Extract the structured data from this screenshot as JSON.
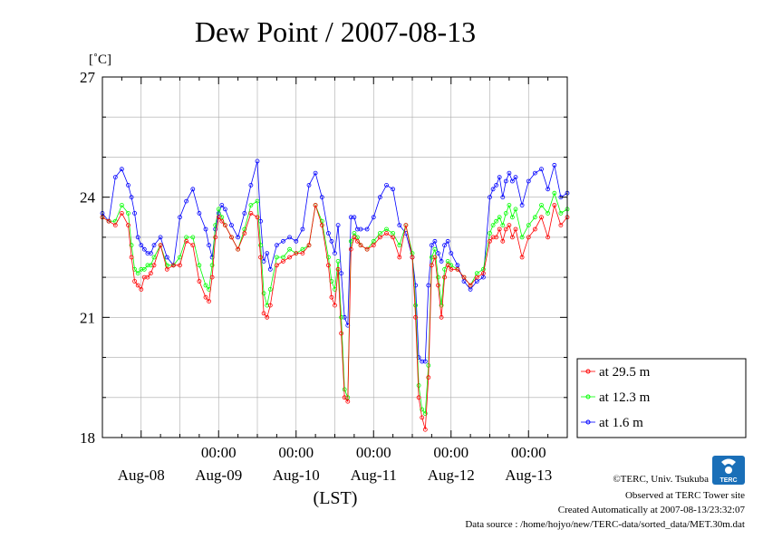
{
  "chart_data": {
    "type": "line",
    "title": "Dew Point / 2007-08-13",
    "ylabel": "[˚C]",
    "xlabel": "(LST)",
    "ylim": [
      18,
      27
    ],
    "xlim": [
      0,
      144
    ],
    "x_unit": "hours since Aug-07 12:00 LST",
    "yticks": [
      18,
      21,
      24,
      27
    ],
    "xticks": [
      {
        "x": 36,
        "label": "00:00",
        "day": "Aug-08"
      },
      {
        "x": 60,
        "label": "00:00",
        "day": "Aug-09"
      },
      {
        "x": 84,
        "label": "00:00",
        "day": "Aug-10"
      },
      {
        "x": 108,
        "label": "00:00",
        "day": "Aug-11"
      },
      {
        "x": 132,
        "label": "00:00",
        "day": "Aug-12"
      }
    ],
    "day_labels": [
      "Aug-08",
      "Aug-09",
      "Aug-10",
      "Aug-11",
      "Aug-12",
      "Aug-13"
    ],
    "grid": true,
    "legend_position": "right",
    "series": [
      {
        "name": "at 29.5 m",
        "color": "#ff0000",
        "x": [
          0,
          2,
          4,
          6,
          8,
          9,
          10,
          11,
          12,
          13,
          14,
          15,
          16,
          18,
          20,
          22,
          24,
          26,
          28,
          30,
          32,
          33,
          34,
          35,
          36,
          37,
          38,
          40,
          42,
          44,
          46,
          48,
          49,
          50,
          51,
          52,
          54,
          56,
          58,
          60,
          62,
          64,
          66,
          68,
          70,
          71,
          72,
          73,
          74,
          75,
          76,
          77,
          78,
          79,
          80,
          82,
          84,
          86,
          88,
          90,
          92,
          94,
          96,
          97,
          98,
          99,
          100,
          101,
          102,
          103,
          104,
          105,
          106,
          107,
          108,
          110,
          112,
          114,
          116,
          118,
          120,
          121,
          122,
          123,
          124,
          125,
          126,
          127,
          128,
          130,
          132,
          134,
          136,
          138,
          140,
          142,
          144
        ],
        "y": [
          23.5,
          23.4,
          23.3,
          23.6,
          23.3,
          22.5,
          21.9,
          21.8,
          21.7,
          22.0,
          22.0,
          22.1,
          22.3,
          22.8,
          22.2,
          22.3,
          22.3,
          22.9,
          22.8,
          21.9,
          21.5,
          21.4,
          22.0,
          23.0,
          23.5,
          23.4,
          23.3,
          23.0,
          22.7,
          23.1,
          23.6,
          23.5,
          22.5,
          21.1,
          21.0,
          21.3,
          22.3,
          22.4,
          22.5,
          22.6,
          22.6,
          22.8,
          23.8,
          23.3,
          22.3,
          21.5,
          21.3,
          22.2,
          20.6,
          19.0,
          18.9,
          22.7,
          23.0,
          22.9,
          22.8,
          22.7,
          22.8,
          23.0,
          23.1,
          23.0,
          22.5,
          23.3,
          22.5,
          21.0,
          19.0,
          18.5,
          18.2,
          19.5,
          22.3,
          22.5,
          21.8,
          21.0,
          22.0,
          22.3,
          22.2,
          22.2,
          22.0,
          21.8,
          22.0,
          22.1,
          22.9,
          23.0,
          23.0,
          23.2,
          22.9,
          23.2,
          23.3,
          23.0,
          23.2,
          22.5,
          23.0,
          23.2,
          23.5,
          23.0,
          23.8,
          23.3,
          23.5
        ]
      },
      {
        "name": "at 12.3 m",
        "color": "#00ff00",
        "x": [
          0,
          2,
          4,
          6,
          8,
          9,
          10,
          11,
          12,
          13,
          14,
          15,
          16,
          18,
          20,
          22,
          24,
          26,
          28,
          30,
          32,
          33,
          34,
          35,
          36,
          37,
          38,
          40,
          42,
          44,
          46,
          48,
          49,
          50,
          51,
          52,
          54,
          56,
          58,
          60,
          62,
          64,
          66,
          68,
          70,
          71,
          72,
          73,
          74,
          75,
          76,
          77,
          78,
          79,
          80,
          82,
          84,
          86,
          88,
          90,
          92,
          94,
          96,
          97,
          98,
          99,
          100,
          101,
          102,
          103,
          104,
          105,
          106,
          107,
          108,
          110,
          112,
          114,
          116,
          118,
          120,
          121,
          122,
          123,
          124,
          125,
          126,
          127,
          128,
          130,
          132,
          134,
          136,
          138,
          140,
          142,
          144
        ],
        "y": [
          23.5,
          23.4,
          23.4,
          23.8,
          23.6,
          22.8,
          22.2,
          22.1,
          22.2,
          22.2,
          22.3,
          22.3,
          22.5,
          22.8,
          22.3,
          22.3,
          22.5,
          23.0,
          23.0,
          22.3,
          21.8,
          21.7,
          22.3,
          23.3,
          23.7,
          23.5,
          23.3,
          23.0,
          22.7,
          23.2,
          23.8,
          23.9,
          22.8,
          21.6,
          21.3,
          21.7,
          22.5,
          22.5,
          22.7,
          22.6,
          22.7,
          22.8,
          23.8,
          23.4,
          22.5,
          21.9,
          21.7,
          22.4,
          21.0,
          19.2,
          19.0,
          22.9,
          23.1,
          23.0,
          22.8,
          22.7,
          22.9,
          23.1,
          23.2,
          23.1,
          22.8,
          23.3,
          22.6,
          21.3,
          19.3,
          18.7,
          18.6,
          19.8,
          22.5,
          22.7,
          22.0,
          21.3,
          22.2,
          22.4,
          22.3,
          22.2,
          22.0,
          21.8,
          22.1,
          22.2,
          23.1,
          23.3,
          23.4,
          23.5,
          23.3,
          23.6,
          23.8,
          23.5,
          23.7,
          23.0,
          23.3,
          23.5,
          23.8,
          23.6,
          24.1,
          23.6,
          23.7
        ]
      },
      {
        "name": "at 1.6 m",
        "color": "#0000ff",
        "x": [
          0,
          2,
          4,
          6,
          8,
          9,
          10,
          11,
          12,
          13,
          14,
          15,
          16,
          18,
          20,
          22,
          24,
          26,
          28,
          30,
          32,
          33,
          34,
          35,
          36,
          37,
          38,
          40,
          42,
          44,
          46,
          48,
          49,
          50,
          51,
          52,
          54,
          56,
          58,
          60,
          62,
          64,
          66,
          68,
          70,
          71,
          72,
          73,
          74,
          75,
          76,
          77,
          78,
          79,
          80,
          82,
          84,
          86,
          88,
          90,
          92,
          94,
          96,
          97,
          98,
          99,
          100,
          101,
          102,
          103,
          104,
          105,
          106,
          107,
          108,
          110,
          112,
          114,
          116,
          118,
          120,
          121,
          122,
          123,
          124,
          125,
          126,
          127,
          128,
          130,
          132,
          134,
          136,
          138,
          140,
          142,
          144
        ],
        "y": [
          23.6,
          23.4,
          24.5,
          24.7,
          24.3,
          24.0,
          23.6,
          23.0,
          22.8,
          22.7,
          22.6,
          22.6,
          22.8,
          23.0,
          22.5,
          22.3,
          23.5,
          23.9,
          24.2,
          23.6,
          23.2,
          22.8,
          22.5,
          23.2,
          23.6,
          23.8,
          23.7,
          23.3,
          23.0,
          23.6,
          24.3,
          24.9,
          23.4,
          22.4,
          22.6,
          22.2,
          22.8,
          22.9,
          23.0,
          22.9,
          23.2,
          24.3,
          24.6,
          24.0,
          23.1,
          22.9,
          22.6,
          23.3,
          22.1,
          21.0,
          20.8,
          23.5,
          23.5,
          23.2,
          23.2,
          23.2,
          23.5,
          24.0,
          24.3,
          24.2,
          23.3,
          23.1,
          22.5,
          21.8,
          20.0,
          19.9,
          19.9,
          21.8,
          22.8,
          22.9,
          22.6,
          22.4,
          22.8,
          22.9,
          22.6,
          22.3,
          21.9,
          21.7,
          21.9,
          22.0,
          24.0,
          24.2,
          24.3,
          24.5,
          24.0,
          24.4,
          24.6,
          24.4,
          24.5,
          23.8,
          24.4,
          24.6,
          24.7,
          24.2,
          24.8,
          24.0,
          24.1
        ]
      }
    ]
  },
  "footer": {
    "copyright": "©TERC, Univ. Tsukuba",
    "observed": "Observed at TERC Tower site",
    "created": "Created Automatically at 2007-08-13/23:32:07",
    "source": "Data source : /home/hojyo/new/TERC-data/sorted_data/MET.30m.dat",
    "logo_text": "TERC",
    "logo_color": "#1a6fb8"
  }
}
